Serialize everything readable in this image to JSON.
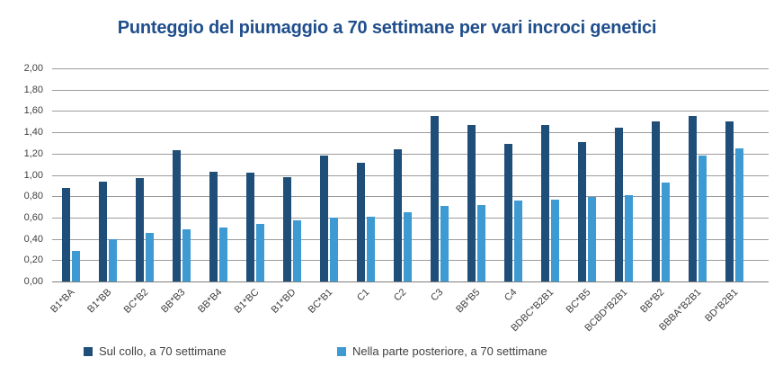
{
  "title": "Punteggio del piumaggio a 70 settimane per vari incroci genetici",
  "colors": {
    "title_blue": "#1F4E8C",
    "dark_series": "#1F4E79",
    "light_series": "#3D9AD2",
    "gridline": "#9C9C9C",
    "axis_line": "#7F7F7F",
    "axis_text": "#3F3F3F"
  },
  "chart_data": {
    "type": "bar",
    "title": "Punteggio del piumaggio a 70 settimane per vari incroci genetici",
    "categories": [
      "B1*BA",
      "B1*BB",
      "BC*B2",
      "BB*B3",
      "BB*B4",
      "B1*BC",
      "B1*BD",
      "BC*B1",
      "C1",
      "C2",
      "C3",
      "BB*B5",
      "C4",
      "BDBC*B2B1",
      "BC*B5",
      "BCBD*B2B1",
      "BB*B2",
      "BBBA*B2B1",
      "BD*B2B1"
    ],
    "series": [
      {
        "name": "Sul collo, a 70 settimane",
        "color": "#1F4E79",
        "values": [
          0.88,
          0.94,
          0.97,
          1.23,
          1.03,
          1.02,
          0.98,
          1.18,
          1.11,
          1.24,
          1.55,
          1.47,
          1.29,
          1.47,
          1.31,
          1.44,
          1.5,
          1.55,
          1.5
        ]
      },
      {
        "name": "Nella parte posteriore, a 70 settimane",
        "color": "#3D9AD2",
        "values": [
          0.29,
          0.4,
          0.46,
          0.49,
          0.51,
          0.54,
          0.57,
          0.6,
          0.61,
          0.65,
          0.71,
          0.72,
          0.76,
          0.77,
          0.79,
          0.81,
          0.93,
          1.18,
          1.25
        ]
      }
    ],
    "xlabel": "",
    "ylabel": "",
    "ylim": [
      0,
      2.0
    ],
    "y_tick_step": 0.2,
    "y_tick_labels": [
      "2,00",
      "1,80",
      "1,60",
      "1,40",
      "1,20",
      "1,00",
      "0,80",
      "0,60",
      "0,40",
      "0,20",
      "0,00"
    ],
    "grid": true,
    "legend_position": "bottom"
  },
  "legend": {
    "items": [
      {
        "label": "Sul collo, a 70 settimane",
        "color": "#1F4E79"
      },
      {
        "label": "Nella parte posteriore, a 70 settimane",
        "color": "#3D9AD2"
      }
    ]
  }
}
